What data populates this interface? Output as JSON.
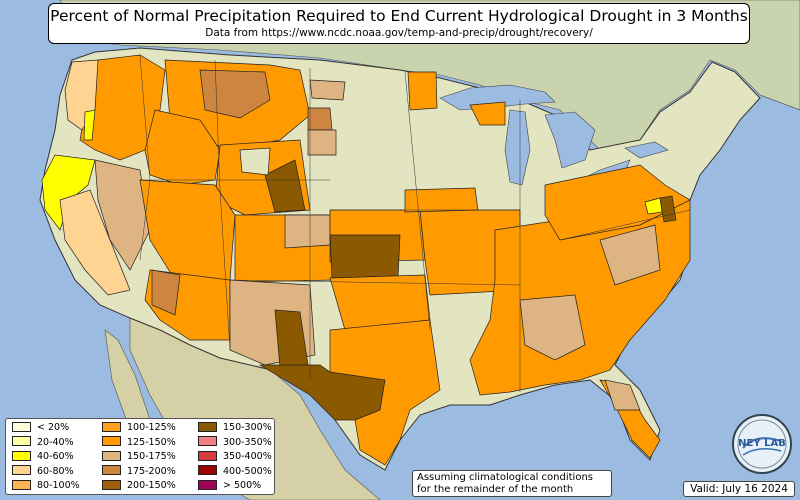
{
  "header": {
    "title": "Percent of Normal Precipitation Required to End Current Hydrological Drought in 3 Months",
    "subtitle": "Data from https://www.ncdc.noaa.gov/temp-and-precip/drought/recovery/"
  },
  "legend": {
    "items": [
      {
        "label": "< 20%",
        "color": "#ffffe0"
      },
      {
        "label": "20-40%",
        "color": "#ffffa8"
      },
      {
        "label": "40-60%",
        "color": "#ffff00"
      },
      {
        "label": "60-80%",
        "color": "#ffd391"
      },
      {
        "label": "80-100%",
        "color": "#ffb450"
      },
      {
        "label": "100-125%",
        "color": "#ffa01e"
      },
      {
        "label": "125-150%",
        "color": "#ff9a00"
      },
      {
        "label": "150-175%",
        "color": "#deb482"
      },
      {
        "label": "175-200%",
        "color": "#cd853f"
      },
      {
        "label": "200-150%",
        "color": "#a0600a"
      },
      {
        "label": "150-300%",
        "color": "#8b5a00"
      },
      {
        "label": "300-350%",
        "color": "#f08080"
      },
      {
        "label": "350-400%",
        "color": "#d23c3c"
      },
      {
        "label": "400-500%",
        "color": "#a00000"
      },
      {
        "label": "> 500%",
        "color": "#a0005a"
      }
    ]
  },
  "footer": {
    "note_line1": "Assuming climatological conditions",
    "note_line2": "for the remainder of the month",
    "valid": "Valid: July 16 2024",
    "logo_text": "NEY LAB"
  },
  "colors": {
    "ocean": "#9bbbe0",
    "land": "#e3e4c0",
    "orange": "#ff9a00",
    "tan": "#deb482",
    "brown": "#8b5a00",
    "light_orange": "#ffd391",
    "yellow": "#ffff00"
  }
}
